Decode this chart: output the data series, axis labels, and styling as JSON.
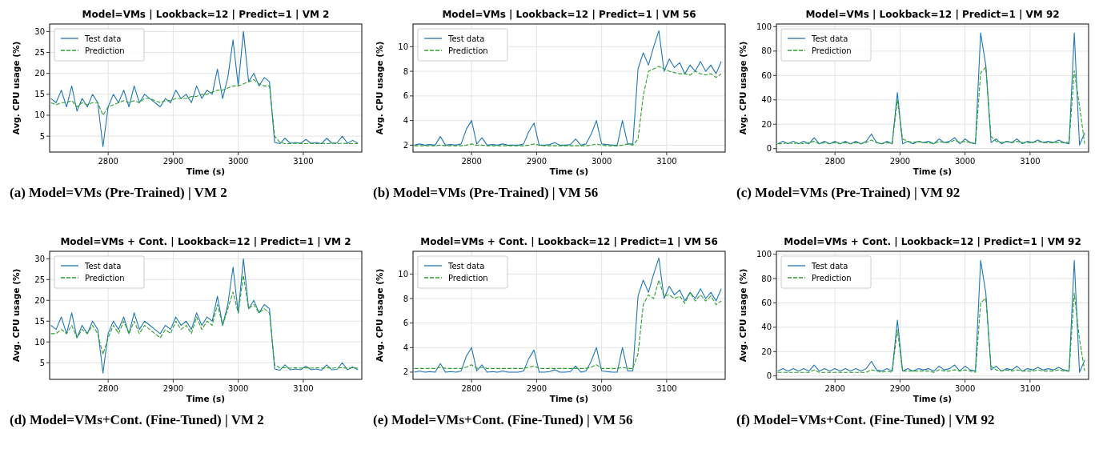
{
  "chart_data": [
    {
      "type": "line",
      "title": "Model=VMs | Lookback=12 | Predict=1 | VM 2",
      "xlabel": "Time (s)",
      "ylabel": "Avg. CPU usage (%)",
      "annotations": [
        "(a) Model=VMs (Pre-Trained) | VM 2"
      ],
      "grid": true,
      "legend": "top left",
      "xlim": [
        2710,
        3190
      ],
      "xticks": [
        2800,
        2900,
        3000,
        3100
      ],
      "ylim": [
        1.2,
        31.8
      ],
      "yticks": [
        5,
        10,
        15,
        20,
        25,
        30
      ],
      "x": [
        2712,
        2720,
        2728,
        2736,
        2744,
        2752,
        2760,
        2768,
        2776,
        2784,
        2792,
        2800,
        2808,
        2816,
        2824,
        2832,
        2840,
        2848,
        2856,
        2864,
        2872,
        2880,
        2888,
        2896,
        2904,
        2912,
        2920,
        2928,
        2936,
        2944,
        2952,
        2960,
        2968,
        2976,
        2984,
        2992,
        3000,
        3008,
        3016,
        3024,
        3032,
        3040,
        3048,
        3056,
        3064,
        3072,
        3080,
        3088,
        3096,
        3104,
        3112,
        3120,
        3128,
        3136,
        3144,
        3152,
        3160,
        3168,
        3176,
        3184
      ],
      "series": [
        {
          "name": "Test data",
          "color": "#1f77b4",
          "line_style": "solid",
          "values": [
            14,
            13,
            16,
            12,
            17,
            11,
            14,
            12,
            15,
            13,
            2.5,
            12,
            15,
            13,
            16,
            12,
            17,
            13,
            15,
            14,
            13,
            12,
            14,
            13,
            16,
            14,
            15,
            13,
            17,
            14,
            16,
            15,
            21,
            14,
            19,
            28,
            17,
            30,
            18,
            20,
            17,
            19,
            18,
            3.5,
            3.2,
            4.5,
            3.3,
            3.5,
            3.3,
            4.2,
            3.3,
            3.5,
            3.2,
            4.5,
            3.3,
            3.4,
            5,
            3.3,
            4,
            3.3
          ]
        },
        {
          "name": "Prediction",
          "color": "#2ca02c",
          "line_style": "dashed",
          "values": [
            13,
            12.5,
            13,
            13,
            13.5,
            12,
            13,
            12.5,
            13,
            13,
            10,
            12,
            12.5,
            13,
            13.5,
            13,
            13.5,
            13,
            14,
            14,
            13.5,
            13,
            13.5,
            13.5,
            14,
            14,
            14,
            14.5,
            14.5,
            15,
            15,
            15.5,
            16,
            16,
            16.5,
            17,
            17,
            17.5,
            18,
            18.5,
            17.5,
            17,
            17,
            5,
            3.5,
            3.2,
            3.2,
            3.3,
            3.2,
            3.2,
            3.3,
            3.2,
            3.3,
            3.2,
            3.3,
            3.2,
            3.3,
            3.2,
            3.2,
            3.2
          ]
        }
      ]
    },
    {
      "type": "line",
      "title": "Model=VMs | Lookback=12 | Predict=1 | VM 56",
      "xlabel": "Time (s)",
      "ylabel": "Avg. CPU usage (%)",
      "annotations": [
        "(b) Model=VMs (Pre-Trained) | VM 56"
      ],
      "grid": true,
      "legend": "top left",
      "xlim": [
        2710,
        3190
      ],
      "xticks": [
        2800,
        2900,
        3000,
        3100
      ],
      "ylim": [
        1.44,
        11.84
      ],
      "yticks": [
        2,
        4,
        6,
        8,
        10
      ],
      "x": [
        2712,
        2720,
        2728,
        2736,
        2744,
        2752,
        2760,
        2768,
        2776,
        2784,
        2792,
        2800,
        2808,
        2816,
        2824,
        2832,
        2840,
        2848,
        2856,
        2864,
        2872,
        2880,
        2888,
        2896,
        2904,
        2912,
        2920,
        2928,
        2936,
        2944,
        2952,
        2960,
        2968,
        2976,
        2984,
        2992,
        3000,
        3008,
        3016,
        3024,
        3032,
        3040,
        3048,
        3056,
        3064,
        3072,
        3080,
        3088,
        3096,
        3104,
        3112,
        3120,
        3128,
        3136,
        3144,
        3152,
        3160,
        3168,
        3176,
        3184
      ],
      "series": [
        {
          "name": "Test data",
          "color": "#1f77b4",
          "line_style": "solid",
          "values": [
            2,
            2.1,
            2,
            2.05,
            2,
            2.7,
            2,
            2.05,
            2,
            2.1,
            3.3,
            4,
            2.1,
            2.6,
            2,
            2.05,
            2,
            2.1,
            2,
            2,
            2,
            2.1,
            3.1,
            3.8,
            2,
            2,
            2.05,
            2.2,
            2,
            2,
            2.05,
            2.5,
            2,
            2.1,
            2.9,
            4,
            2.1,
            2.05,
            2,
            2,
            4,
            2.1,
            2.1,
            8.2,
            9.5,
            8.5,
            10,
            11.3,
            8,
            9,
            8.3,
            8.7,
            7.8,
            8.5,
            8,
            8.8,
            8,
            8.5,
            7.8,
            8.8
          ]
        },
        {
          "name": "Prediction",
          "color": "#2ca02c",
          "line_style": "dashed",
          "values": [
            1.95,
            1.95,
            1.95,
            1.95,
            1.95,
            2,
            1.95,
            1.95,
            1.95,
            1.95,
            2,
            2.1,
            2,
            2,
            1.95,
            1.95,
            1.95,
            1.95,
            1.95,
            1.95,
            1.95,
            1.95,
            2,
            2.1,
            2,
            1.95,
            1.95,
            1.95,
            1.95,
            1.95,
            1.95,
            1.95,
            1.95,
            1.95,
            2,
            2.1,
            2,
            1.95,
            1.95,
            1.95,
            2,
            2.1,
            2,
            2.5,
            6,
            8,
            8.2,
            8.4,
            8.2,
            8,
            7.9,
            7.8,
            7.8,
            7.7,
            8,
            7.8,
            7.7,
            7.8,
            7.5,
            7.8
          ]
        }
      ]
    },
    {
      "type": "line",
      "title": "Model=VMs | Lookback=12 | Predict=1 | VM 92",
      "xlabel": "Time (s)",
      "ylabel": "Avg. CPU usage (%)",
      "annotations": [
        "(c) Model=VMs (Pre-Trained) | VM 92"
      ],
      "grid": true,
      "legend": "top left",
      "xlim": [
        2710,
        3190
      ],
      "xticks": [
        2800,
        2900,
        3000,
        3100
      ],
      "ylim": [
        -2.8,
        102.2
      ],
      "yticks": [
        0,
        20,
        40,
        60,
        80,
        100
      ],
      "x": [
        2712,
        2720,
        2728,
        2736,
        2744,
        2752,
        2760,
        2768,
        2776,
        2784,
        2792,
        2800,
        2808,
        2816,
        2824,
        2832,
        2840,
        2848,
        2856,
        2864,
        2872,
        2880,
        2888,
        2896,
        2904,
        2912,
        2920,
        2928,
        2936,
        2944,
        2952,
        2960,
        2968,
        2976,
        2984,
        2992,
        3000,
        3008,
        3016,
        3024,
        3032,
        3040,
        3048,
        3056,
        3064,
        3072,
        3080,
        3088,
        3096,
        3104,
        3112,
        3120,
        3128,
        3136,
        3144,
        3152,
        3160,
        3168,
        3176,
        3184
      ],
      "series": [
        {
          "name": "Test data",
          "color": "#1f77b4",
          "line_style": "solid",
          "values": [
            4,
            6,
            4,
            6,
            4,
            6,
            4,
            9,
            4,
            6,
            4,
            6,
            4,
            6,
            4,
            6,
            4,
            6,
            12,
            5,
            4,
            6,
            4,
            46,
            4,
            6,
            4,
            6,
            5,
            6,
            4,
            8,
            5,
            6,
            9,
            4,
            8,
            5,
            4,
            95,
            68,
            5,
            8,
            4,
            6,
            5,
            8,
            4,
            6,
            5,
            7,
            5,
            6,
            5,
            7,
            5,
            4,
            95,
            3,
            13
          ]
        },
        {
          "name": "Prediction",
          "color": "#2ca02c",
          "line_style": "dashed",
          "values": [
            4,
            4,
            5,
            4,
            5,
            4,
            5,
            6,
            4,
            5,
            4,
            5,
            4,
            5,
            4,
            5,
            4,
            5,
            7,
            5,
            4,
            5,
            4,
            40,
            8,
            6,
            5,
            6,
            5,
            5,
            4,
            6,
            5,
            5,
            7,
            5,
            6,
            5,
            4,
            62,
            67,
            10,
            6,
            5,
            6,
            5,
            6,
            5,
            5,
            5,
            6,
            5,
            5,
            5,
            5,
            5,
            5,
            64,
            35,
            4
          ]
        }
      ]
    },
    {
      "type": "line",
      "title": "Model=VMs + Cont. | Lookback=12 | Predict=1 | VM 2",
      "xlabel": "Time (s)",
      "ylabel": "Avg. CPU usage (%)",
      "annotations": [
        "(d) Model=VMs+Cont. (Fine-Tuned) | VM 2"
      ],
      "grid": true,
      "legend": "top left",
      "xlim": [
        2710,
        3190
      ],
      "xticks": [
        2800,
        2900,
        3000,
        3100
      ],
      "ylim": [
        1.0,
        31.8
      ],
      "yticks": [
        5,
        10,
        15,
        20,
        25,
        30
      ],
      "x": [
        2712,
        2720,
        2728,
        2736,
        2744,
        2752,
        2760,
        2768,
        2776,
        2784,
        2792,
        2800,
        2808,
        2816,
        2824,
        2832,
        2840,
        2848,
        2856,
        2864,
        2872,
        2880,
        2888,
        2896,
        2904,
        2912,
        2920,
        2928,
        2936,
        2944,
        2952,
        2960,
        2968,
        2976,
        2984,
        2992,
        3000,
        3008,
        3016,
        3024,
        3032,
        3040,
        3048,
        3056,
        3064,
        3072,
        3080,
        3088,
        3096,
        3104,
        3112,
        3120,
        3128,
        3136,
        3144,
        3152,
        3160,
        3168,
        3176,
        3184
      ],
      "series": [
        {
          "name": "Test data",
          "color": "#1f77b4",
          "line_style": "solid",
          "values": [
            14,
            13,
            16,
            12,
            17,
            11,
            14,
            12,
            15,
            13,
            2.5,
            12,
            15,
            13,
            16,
            12,
            17,
            13,
            15,
            14,
            13,
            12,
            14,
            13,
            16,
            14,
            15,
            13,
            17,
            14,
            16,
            15,
            21,
            14,
            19,
            28,
            17,
            30,
            18,
            20,
            17,
            19,
            18,
            3.5,
            3.2,
            4.5,
            3.3,
            3.5,
            3.3,
            4.2,
            3.3,
            3.5,
            3.2,
            4.5,
            3.3,
            3.4,
            5,
            3.3,
            4,
            3.3
          ]
        },
        {
          "name": "Prediction",
          "color": "#2ca02c",
          "line_style": "dashed",
          "values": [
            12,
            12,
            13,
            12,
            14,
            11,
            13,
            12,
            14,
            12,
            7,
            11,
            14,
            12,
            15,
            12,
            15,
            12,
            14,
            13,
            12,
            11,
            13,
            12,
            15,
            13,
            14,
            12,
            16,
            13,
            15,
            14,
            19,
            14,
            18,
            22,
            17,
            26,
            18,
            19,
            17,
            18,
            17,
            4.5,
            3.8,
            3.8,
            3.7,
            3.8,
            3.7,
            3.8,
            3.7,
            3.8,
            3.7,
            3.8,
            3.7,
            3.8,
            3.8,
            3.7,
            3.8,
            3.7
          ]
        }
      ]
    },
    {
      "type": "line",
      "title": "Model=VMs + Cont. | Lookback=12 | Predict=1 | VM 56",
      "xlabel": "Time (s)",
      "ylabel": "Avg. CPU usage (%)",
      "annotations": [
        "(e) Model=VMs+Cont. (Fine-Tuned) | VM 56"
      ],
      "grid": true,
      "legend": "top left",
      "xlim": [
        2710,
        3190
      ],
      "xticks": [
        2800,
        2900,
        3000,
        3100
      ],
      "ylim": [
        1.41,
        11.85
      ],
      "yticks": [
        2,
        4,
        6,
        8,
        10
      ],
      "x": [
        2712,
        2720,
        2728,
        2736,
        2744,
        2752,
        2760,
        2768,
        2776,
        2784,
        2792,
        2800,
        2808,
        2816,
        2824,
        2832,
        2840,
        2848,
        2856,
        2864,
        2872,
        2880,
        2888,
        2896,
        2904,
        2912,
        2920,
        2928,
        2936,
        2944,
        2952,
        2960,
        2968,
        2976,
        2984,
        2992,
        3000,
        3008,
        3016,
        3024,
        3032,
        3040,
        3048,
        3056,
        3064,
        3072,
        3080,
        3088,
        3096,
        3104,
        3112,
        3120,
        3128,
        3136,
        3144,
        3152,
        3160,
        3168,
        3176,
        3184
      ],
      "series": [
        {
          "name": "Test data",
          "color": "#1f77b4",
          "line_style": "solid",
          "values": [
            2,
            2.1,
            2,
            2.05,
            2,
            2.7,
            2,
            2.05,
            2,
            2.1,
            3.3,
            4,
            2.1,
            2.6,
            2,
            2.05,
            2,
            2.1,
            2,
            2,
            2,
            2.1,
            3.1,
            3.8,
            2,
            2,
            2.05,
            2.2,
            2,
            2,
            2.05,
            2.5,
            2,
            2.1,
            2.9,
            4,
            2.1,
            2.05,
            2,
            2,
            4,
            2.1,
            2.1,
            8.2,
            9.5,
            8.5,
            10,
            11.3,
            8,
            9,
            8.3,
            8.7,
            7.8,
            8.5,
            8,
            8.8,
            8,
            8.5,
            7.8,
            8.8
          ]
        },
        {
          "name": "Prediction",
          "color": "#2ca02c",
          "line_style": "dashed",
          "values": [
            2.3,
            2.3,
            2.3,
            2.3,
            2.3,
            2.4,
            2.3,
            2.3,
            2.3,
            2.3,
            2.4,
            2.6,
            2.3,
            2.4,
            2.3,
            2.3,
            2.3,
            2.3,
            2.3,
            2.3,
            2.3,
            2.3,
            2.4,
            2.5,
            2.3,
            2.3,
            2.3,
            2.3,
            2.3,
            2.3,
            2.3,
            2.3,
            2.3,
            2.3,
            2.4,
            2.6,
            2.3,
            2.3,
            2.3,
            2.3,
            2.4,
            2.3,
            2.3,
            3.5,
            7.5,
            8.3,
            8,
            9.5,
            8.2,
            8.3,
            8,
            8.2,
            7.6,
            8.5,
            7.8,
            8.3,
            7.8,
            8.2,
            7.5,
            7.8
          ]
        }
      ]
    },
    {
      "type": "line",
      "title": "Model=VMs + Cont. | Lookback=12 | Predict=1 | VM 92",
      "xlabel": "Time (s)",
      "ylabel": "Avg. CPU usage (%)",
      "annotations": [
        "(f) Model=VMs+Cont. (Fine-Tuned) | VM 92"
      ],
      "grid": true,
      "legend": "top left",
      "xlim": [
        2710,
        3190
      ],
      "xticks": [
        2800,
        2900,
        3000,
        3100
      ],
      "ylim": [
        -2.8,
        102.4
      ],
      "yticks": [
        0,
        20,
        40,
        60,
        80,
        100
      ],
      "x": [
        2712,
        2720,
        2728,
        2736,
        2744,
        2752,
        2760,
        2768,
        2776,
        2784,
        2792,
        2800,
        2808,
        2816,
        2824,
        2832,
        2840,
        2848,
        2856,
        2864,
        2872,
        2880,
        2888,
        2896,
        2904,
        2912,
        2920,
        2928,
        2936,
        2944,
        2952,
        2960,
        2968,
        2976,
        2984,
        2992,
        3000,
        3008,
        3016,
        3024,
        3032,
        3040,
        3048,
        3056,
        3064,
        3072,
        3080,
        3088,
        3096,
        3104,
        3112,
        3120,
        3128,
        3136,
        3144,
        3152,
        3160,
        3168,
        3176,
        3184
      ],
      "series": [
        {
          "name": "Test data",
          "color": "#1f77b4",
          "line_style": "solid",
          "values": [
            4,
            6,
            4,
            6,
            4,
            6,
            4,
            9,
            4,
            6,
            4,
            6,
            4,
            6,
            4,
            6,
            4,
            6,
            12,
            5,
            4,
            6,
            4,
            46,
            4,
            6,
            4,
            6,
            5,
            6,
            4,
            8,
            5,
            6,
            9,
            4,
            8,
            5,
            4,
            95,
            68,
            5,
            8,
            4,
            6,
            5,
            8,
            4,
            6,
            5,
            7,
            5,
            6,
            5,
            7,
            5,
            4,
            95,
            3,
            13
          ]
        },
        {
          "name": "Prediction",
          "color": "#2ca02c",
          "line_style": "dashed",
          "values": [
            3,
            3,
            3,
            3,
            3,
            3,
            3,
            5,
            3,
            3,
            3,
            3,
            3,
            3,
            3,
            3,
            3,
            3,
            5,
            4,
            3,
            4,
            3,
            38,
            4,
            4,
            4,
            4,
            4,
            4,
            3,
            5,
            4,
            4,
            5,
            4,
            5,
            4,
            3,
            60,
            64,
            8,
            5,
            4,
            5,
            4,
            5,
            4,
            4,
            4,
            5,
            4,
            4,
            4,
            5,
            4,
            4,
            68,
            30,
            4
          ]
        }
      ]
    }
  ]
}
